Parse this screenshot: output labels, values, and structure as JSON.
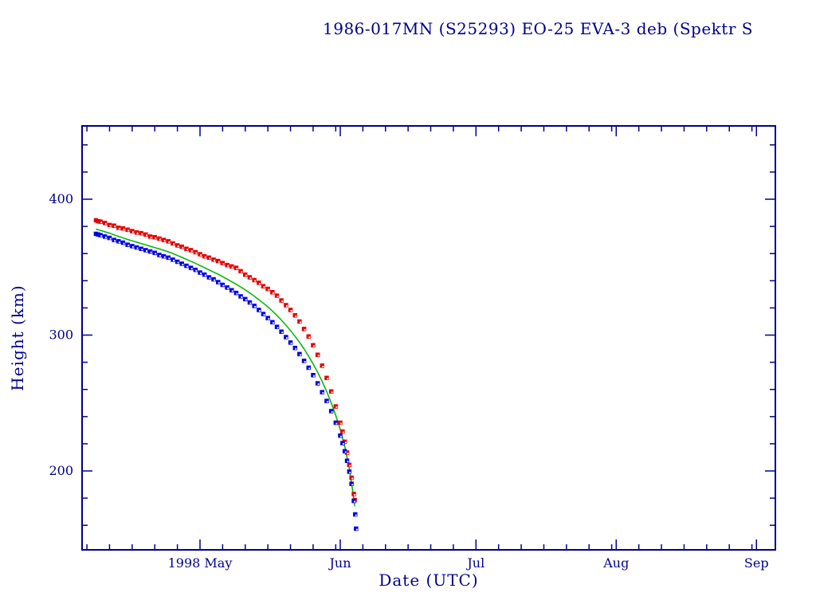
{
  "chart_data": {
    "type": "scatter",
    "title": "1986-017MN (S25293) EO-25 EVA-3 deb (Spektr S",
    "xlabel": "Date (UTC)",
    "ylabel": "Height (km)",
    "x_unit": "days since 1998-04-01",
    "xlim_days": [
      4.9,
      157.2
    ],
    "ylim": [
      142,
      454
    ],
    "grid": false,
    "legend": "none",
    "axis_color": "#00008b",
    "x_axis": {
      "major_ticks": [
        {
          "day": 30,
          "label": "1998 May"
        },
        {
          "day": 61,
          "label": "Jun"
        },
        {
          "day": 91,
          "label": "Jul"
        },
        {
          "day": 122,
          "label": "Aug"
        },
        {
          "day": 153,
          "label": "Sep"
        }
      ],
      "minor_tick_days": [
        5,
        10,
        15,
        20,
        25,
        35,
        40,
        45,
        50,
        55,
        60,
        66,
        71,
        76,
        81,
        86,
        96,
        101,
        106,
        111,
        116,
        121,
        127,
        132,
        137,
        142,
        147,
        152
      ]
    },
    "y_axis": {
      "major_ticks": [
        {
          "km": 200,
          "label": "200"
        },
        {
          "km": 300,
          "label": "300"
        },
        {
          "km": 400,
          "label": "400"
        }
      ],
      "minor_tick_kms": [
        160,
        180,
        220,
        240,
        260,
        280,
        320,
        340,
        360,
        380,
        420,
        440
      ]
    },
    "series": [
      {
        "id": "upper-red-squares",
        "color": "#e60000",
        "style": "markers",
        "marker": "square",
        "points": [
          [
            7,
            384.5
          ],
          [
            7.5,
            383.8
          ],
          [
            8,
            383.5
          ],
          [
            9,
            382.5
          ],
          [
            10,
            381
          ],
          [
            11,
            380.5
          ],
          [
            12,
            379
          ],
          [
            13,
            378.5
          ],
          [
            14,
            377.5
          ],
          [
            15,
            376.5
          ],
          [
            16,
            375.5
          ],
          [
            17,
            375
          ],
          [
            18,
            374
          ],
          [
            19,
            372.5
          ],
          [
            20,
            372
          ],
          [
            21,
            371
          ],
          [
            22,
            370
          ],
          [
            23,
            369
          ],
          [
            24,
            367.5
          ],
          [
            25,
            366
          ],
          [
            26,
            365
          ],
          [
            27,
            363.5
          ],
          [
            28,
            362.5
          ],
          [
            29,
            361
          ],
          [
            30,
            359.5
          ],
          [
            31,
            358
          ],
          [
            32,
            357
          ],
          [
            33,
            355.5
          ],
          [
            34,
            354.5
          ],
          [
            35,
            353
          ],
          [
            36,
            351.5
          ],
          [
            37,
            350.5
          ],
          [
            38,
            349.5
          ],
          [
            39,
            347
          ],
          [
            40,
            344.5
          ],
          [
            41,
            342.5
          ],
          [
            42,
            340.5
          ],
          [
            43,
            338.5
          ],
          [
            44,
            336
          ],
          [
            45,
            334
          ],
          [
            46,
            331.5
          ],
          [
            47,
            329
          ],
          [
            48,
            325.5
          ],
          [
            49,
            322
          ],
          [
            50,
            318.5
          ],
          [
            51,
            314.5
          ],
          [
            52,
            310
          ],
          [
            53,
            304.5
          ],
          [
            54,
            299
          ],
          [
            55,
            292.5
          ],
          [
            56,
            285.5
          ],
          [
            57,
            277.5
          ],
          [
            58,
            268.5
          ],
          [
            59,
            258.5
          ],
          [
            60,
            247.5
          ],
          [
            61,
            235.5
          ],
          [
            61.5,
            229
          ],
          [
            62,
            221.5
          ],
          [
            62.5,
            213.5
          ],
          [
            63,
            204.5
          ],
          [
            63.5,
            195
          ],
          [
            64,
            183
          ],
          [
            64.2,
            178.5
          ]
        ]
      },
      {
        "id": "lower-blue-squares",
        "color": "#0000e6",
        "style": "markers",
        "marker": "square",
        "points": [
          [
            7,
            374.5
          ],
          [
            7.5,
            374
          ],
          [
            8,
            373.5
          ],
          [
            9,
            372.5
          ],
          [
            10,
            371.5
          ],
          [
            11,
            370
          ],
          [
            12,
            369
          ],
          [
            13,
            368
          ],
          [
            14,
            366.5
          ],
          [
            15,
            365.5
          ],
          [
            16,
            364.5
          ],
          [
            17,
            363.5
          ],
          [
            18,
            362.5
          ],
          [
            19,
            361.5
          ],
          [
            20,
            360.5
          ],
          [
            21,
            359
          ],
          [
            22,
            358
          ],
          [
            23,
            357
          ],
          [
            24,
            355.5
          ],
          [
            25,
            354
          ],
          [
            26,
            352.5
          ],
          [
            27,
            351
          ],
          [
            28,
            349.5
          ],
          [
            29,
            348
          ],
          [
            30,
            346
          ],
          [
            31,
            344.5
          ],
          [
            32,
            342.5
          ],
          [
            33,
            341
          ],
          [
            34,
            339
          ],
          [
            35,
            337
          ],
          [
            36,
            335
          ],
          [
            37,
            333
          ],
          [
            38,
            331
          ],
          [
            39,
            328.5
          ],
          [
            40,
            326.5
          ],
          [
            41,
            324
          ],
          [
            42,
            321.5
          ],
          [
            43,
            318.5
          ],
          [
            44,
            315.5
          ],
          [
            45,
            312.5
          ],
          [
            46,
            309.5
          ],
          [
            47,
            306
          ],
          [
            48,
            302.5
          ],
          [
            49,
            298.5
          ],
          [
            50,
            294.5
          ],
          [
            51,
            290.5
          ],
          [
            52,
            286
          ],
          [
            53,
            281
          ],
          [
            54,
            276
          ],
          [
            55,
            270.5
          ],
          [
            56,
            264.5
          ],
          [
            57,
            258
          ],
          [
            58,
            251.5
          ],
          [
            59,
            244
          ],
          [
            60,
            235.5
          ],
          [
            61,
            226
          ],
          [
            61.5,
            220.5
          ],
          [
            62,
            214.5
          ],
          [
            62.5,
            207.5
          ],
          [
            63,
            199.5
          ],
          [
            63.5,
            190.5
          ],
          [
            64,
            178
          ],
          [
            64.3,
            168
          ],
          [
            64.5,
            157.5
          ]
        ]
      },
      {
        "id": "mean-green-line",
        "color": "#00b400",
        "style": "line",
        "points": [
          [
            7,
            378
          ],
          [
            8,
            377
          ],
          [
            9,
            376
          ],
          [
            10,
            375
          ],
          [
            11,
            373.8
          ],
          [
            12,
            372.6
          ],
          [
            13,
            371.5
          ],
          [
            14,
            370.4
          ],
          [
            15,
            369.4
          ],
          [
            16,
            368.4
          ],
          [
            17,
            367.4
          ],
          [
            18,
            366.4
          ],
          [
            19,
            365.4
          ],
          [
            20,
            364.4
          ],
          [
            21,
            363.4
          ],
          [
            22,
            362.4
          ],
          [
            23,
            361.3
          ],
          [
            24,
            360
          ],
          [
            25,
            358.6
          ],
          [
            26,
            357.2
          ],
          [
            27,
            355.8
          ],
          [
            28,
            354.3
          ],
          [
            29,
            352.8
          ],
          [
            30,
            351.2
          ],
          [
            31,
            349.6
          ],
          [
            32,
            348
          ],
          [
            33,
            346.4
          ],
          [
            34,
            344.8
          ],
          [
            35,
            343
          ],
          [
            36,
            341.2
          ],
          [
            37,
            339.3
          ],
          [
            38,
            337.4
          ],
          [
            39,
            335.4
          ],
          [
            40,
            333.3
          ],
          [
            41,
            331
          ],
          [
            42,
            328.6
          ],
          [
            43,
            326.1
          ],
          [
            44,
            323.5
          ],
          [
            45,
            320.7
          ],
          [
            46,
            317.7
          ],
          [
            47,
            314.5
          ],
          [
            48,
            311
          ],
          [
            49,
            307.3
          ],
          [
            50,
            303.4
          ],
          [
            51,
            299.2
          ],
          [
            52,
            294.7
          ],
          [
            53,
            289.8
          ],
          [
            54,
            284.5
          ],
          [
            55,
            278.8
          ],
          [
            56,
            272.6
          ],
          [
            57,
            265.8
          ],
          [
            58,
            258.4
          ],
          [
            59,
            250.2
          ],
          [
            60,
            241
          ],
          [
            61,
            230.5
          ],
          [
            62,
            218
          ],
          [
            63,
            202
          ],
          [
            63.6,
            189
          ],
          [
            64.2,
            174
          ]
        ]
      }
    ]
  }
}
